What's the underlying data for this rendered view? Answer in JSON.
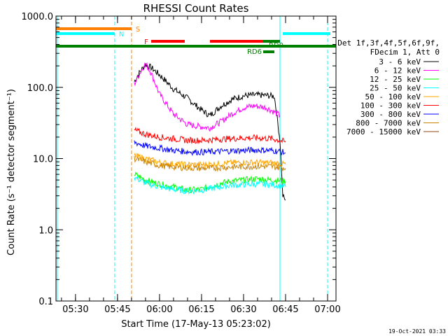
{
  "chart_data": {
    "type": "line",
    "title": "RHESSI Count Rates",
    "xlabel": "Start Time (17-May-13 05:23:02)",
    "ylabel": "Count Rate (s⁻¹ detector segment⁻¹)",
    "yscale": "log",
    "ylim": [
      0.1,
      1000
    ],
    "xlim": [
      "05:23:02",
      "07:03:00"
    ],
    "x_ticks": [
      "05:30",
      "05:45",
      "06:00",
      "06:15",
      "06:30",
      "06:45",
      "07:00"
    ],
    "y_ticks": [
      "0.1",
      "1.0",
      "10.0",
      "100.0",
      "1000.0"
    ],
    "legend_header": [
      "Det 1f,3f,4f,5f,6f,9f,",
      "FDecim 1, Att 0"
    ],
    "legend_placement": "right",
    "series": [
      {
        "name": "3 - 6 keV",
        "color": "#000000",
        "x": [
          "05:51",
          "05:53",
          "05:55",
          "05:57",
          "06:00",
          "06:05",
          "06:10",
          "06:15",
          "06:18",
          "06:22",
          "06:26",
          "06:30",
          "06:34",
          "06:38",
          "06:41",
          "06:43",
          "06:44",
          "06:45"
        ],
        "values": [
          120,
          165,
          210,
          190,
          150,
          95,
          70,
          48,
          40,
          55,
          68,
          76,
          78,
          77,
          75,
          18,
          3,
          2.6
        ]
      },
      {
        "name": "6 - 12 keV",
        "color": "#ff00ff",
        "x": [
          "05:51",
          "05:53",
          "05:55",
          "05:57",
          "06:00",
          "06:05",
          "06:10",
          "06:15",
          "06:18",
          "06:22",
          "06:26",
          "06:30",
          "06:34",
          "06:38",
          "06:41",
          "06:43"
        ],
        "values": [
          110,
          160,
          215,
          160,
          80,
          42,
          30,
          28,
          27,
          33,
          43,
          52,
          55,
          52,
          45,
          40
        ]
      },
      {
        "name": "12 - 25 keV",
        "color": "#00ff00",
        "x": [
          "05:51",
          "05:55",
          "06:00",
          "06:05",
          "06:10",
          "06:15",
          "06:20",
          "06:25",
          "06:30",
          "06:35",
          "06:40",
          "06:43",
          "06:45"
        ],
        "values": [
          6.0,
          5.0,
          4.4,
          4.0,
          3.6,
          3.7,
          4.3,
          4.8,
          5.0,
          5.2,
          5.0,
          4.9,
          4.8
        ]
      },
      {
        "name": "25 - 50 keV",
        "color": "#00ffff",
        "x": [
          "05:51",
          "05:55",
          "06:00",
          "06:05",
          "06:10",
          "06:15",
          "06:20",
          "06:25",
          "06:30",
          "06:35",
          "06:40",
          "06:43",
          "06:45"
        ],
        "values": [
          5.5,
          4.5,
          4.0,
          3.7,
          3.5,
          3.6,
          3.9,
          4.2,
          4.3,
          4.4,
          4.3,
          4.2,
          4.0
        ]
      },
      {
        "name": "50 - 100 keV",
        "color": "#ffa500",
        "x": [
          "05:51",
          "05:55",
          "06:00",
          "06:05",
          "06:10",
          "06:15",
          "06:20",
          "06:25",
          "06:30",
          "06:35",
          "06:40",
          "06:43",
          "06:45"
        ],
        "values": [
          11,
          10,
          8.8,
          8.4,
          8.2,
          8.2,
          8.4,
          8.7,
          8.8,
          8.8,
          8.7,
          8.5,
          8.3
        ]
      },
      {
        "name": "100 - 300 keV",
        "color": "#ff0000",
        "x": [
          "05:51",
          "05:55",
          "06:00",
          "06:05",
          "06:10",
          "06:15",
          "06:20",
          "06:25",
          "06:30",
          "06:35",
          "06:40",
          "06:43",
          "06:45"
        ],
        "values": [
          25,
          22,
          20,
          19,
          18,
          18,
          18.5,
          19,
          19.5,
          19.5,
          19,
          18,
          17
        ]
      },
      {
        "name": "300 - 800 keV",
        "color": "#0000ff",
        "x": [
          "05:51",
          "05:55",
          "06:00",
          "06:05",
          "06:10",
          "06:15",
          "06:20",
          "06:25",
          "06:30",
          "06:35",
          "06:40",
          "06:43",
          "06:45"
        ],
        "values": [
          17,
          15,
          14,
          13,
          12.5,
          12.3,
          12.5,
          12.8,
          13,
          13.2,
          13,
          12.5,
          12
        ]
      },
      {
        "name": "800 - 7000 keV",
        "color": "#cc8400",
        "x": [
          "05:51",
          "05:55",
          "06:00",
          "06:05",
          "06:10",
          "06:15",
          "06:20",
          "06:25",
          "06:30",
          "06:35",
          "06:40",
          "06:43",
          "06:45"
        ],
        "values": [
          10,
          9,
          8,
          7.6,
          7.4,
          7.3,
          7.4,
          7.6,
          7.7,
          7.8,
          7.7,
          7.5,
          7.3
        ]
      },
      {
        "name": "7000 - 15000 keV",
        "color": "#8b4513",
        "x": [],
        "values": []
      }
    ],
    "flag_bars": [
      {
        "label": "S",
        "color": "#ff8000",
        "start": "05:23:02",
        "end": "05:50"
      },
      {
        "label": "N",
        "color": "#00ffff",
        "start": "05:23:02",
        "end": "05:44"
      },
      {
        "label": "N",
        "color": "#00ffff",
        "start": "06:44",
        "end": "07:01"
      },
      {
        "label": "F",
        "color": "#ff0000",
        "start": "05:57",
        "end": "06:09"
      },
      {
        "label": "F",
        "color": "#ff0000",
        "start": "06:18",
        "end": "06:42"
      },
      {
        "label": "RD0",
        "color": "#008000",
        "start": "06:37",
        "end": "06:43"
      },
      {
        "label": "RD6",
        "color": "#008000",
        "start": "06:37",
        "end": "06:41"
      },
      {
        "label": "",
        "color": "#008000",
        "start": "05:23:02",
        "end": "07:03:00"
      }
    ],
    "vertical_markers": [
      {
        "time": "05:23:30",
        "color": "#00ffff",
        "style": "solid"
      },
      {
        "time": "05:44",
        "color": "#00ffff",
        "style": "dashed"
      },
      {
        "time": "05:50",
        "color": "#ff8000",
        "style": "dashed"
      },
      {
        "time": "06:43",
        "color": "#00ffff",
        "style": "solid"
      },
      {
        "time": "07:00",
        "color": "#00ffff",
        "style": "dashed"
      }
    ],
    "timestamp": "19-Oct-2021 03:33"
  }
}
